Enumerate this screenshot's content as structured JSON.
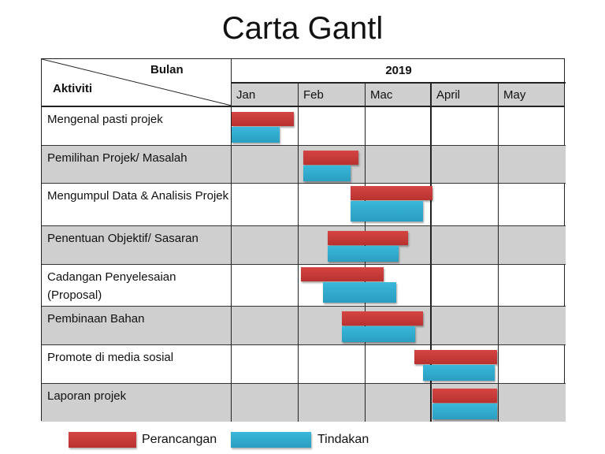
{
  "title": "Carta Gantl",
  "header": {
    "row_header": "Aktiviti",
    "col_header": "Bulan",
    "year": "2019",
    "months": [
      "Jan",
      "Feb",
      "Mac",
      "April",
      "May"
    ]
  },
  "activities": [
    "Mengenal pasti projek",
    "Pemilihan Projek/ Masalah",
    "Mengumpul Data & Analisis Projek",
    "Penentuan Objektif/ Sasaran",
    "Cadangan Penyelesaian (Proposal)",
    "Pembinaan Bahan",
    "Promote di media sosial",
    "Laporan projek"
  ],
  "legend": {
    "planning": "Perancangan",
    "action": "Tindakan"
  },
  "colors": {
    "planning": "#c93b39",
    "action": "#32acd0",
    "shaded_row": "#cfcfcf"
  },
  "chart_data": {
    "type": "gantt",
    "title": "Carta Gantl",
    "xlabel": "Bulan (2019)",
    "ylabel": "Aktiviti",
    "categories": [
      "Jan",
      "Feb",
      "Mac",
      "April",
      "May"
    ],
    "units": "month index (0 = start of Jan, 5 = end of May)",
    "series": [
      {
        "name": "Perancangan",
        "color": "#c93b39",
        "tasks": [
          {
            "activity": "Mengenal pasti projek",
            "start": 0.0,
            "end": 0.93
          },
          {
            "activity": "Pemilihan Projek/ Masalah",
            "start": 1.07,
            "end": 1.9
          },
          {
            "activity": "Mengumpul Data & Analisis Projek",
            "start": 1.78,
            "end": 3.0
          },
          {
            "activity": "Penentuan Objektif/ Sasaran",
            "start": 1.43,
            "end": 2.64
          },
          {
            "activity": "Cadangan Penyelesaian (Proposal)",
            "start": 1.04,
            "end": 2.27
          },
          {
            "activity": "Pembinaan Bahan",
            "start": 1.65,
            "end": 2.86
          },
          {
            "activity": "Promote di media sosial",
            "start": 2.73,
            "end": 3.96
          },
          {
            "activity": "Laporan projek",
            "start": 3.0,
            "end": 3.96
          }
        ]
      },
      {
        "name": "Tindakan",
        "color": "#32acd0",
        "tasks": [
          {
            "activity": "Mengenal pasti projek",
            "start": 0.0,
            "end": 0.72
          },
          {
            "activity": "Pemilihan Projek/ Masalah",
            "start": 1.07,
            "end": 1.78
          },
          {
            "activity": "Mengumpul Data & Analisis Projek",
            "start": 1.78,
            "end": 2.86
          },
          {
            "activity": "Penentuan Objektif/ Sasaran",
            "start": 1.43,
            "end": 2.5
          },
          {
            "activity": "Cadangan Penyelesaian (Proposal)",
            "start": 1.37,
            "end": 2.46
          },
          {
            "activity": "Pembinaan Bahan",
            "start": 1.65,
            "end": 2.74
          },
          {
            "activity": "Promote di media sosial",
            "start": 2.86,
            "end": 3.93
          },
          {
            "activity": "Laporan projek",
            "start": 3.0,
            "end": 3.96
          }
        ]
      }
    ],
    "legend_position": "bottom"
  }
}
